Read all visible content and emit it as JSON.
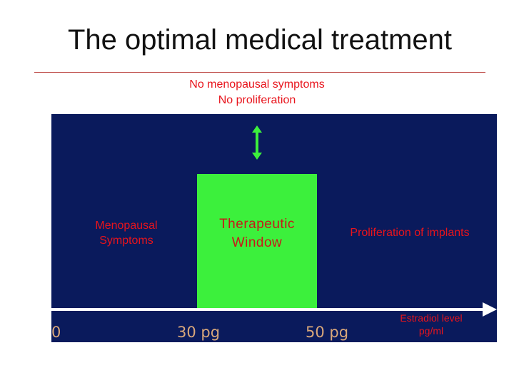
{
  "title": "The optimal medical treatment",
  "top_note": {
    "line1": "No menopausal symptoms",
    "line2": "No proliferation"
  },
  "regions": {
    "left": {
      "line1": "Menopausal",
      "line2": "Symptoms"
    },
    "window": {
      "line1": "Therapeutic",
      "line2": "Window"
    },
    "right": "Proliferation of implants"
  },
  "axis": {
    "ticks": [
      "0",
      "30 pg",
      "50 pg"
    ],
    "label_line1": "Estradiol level",
    "label_line2": "pg/ml"
  },
  "colors": {
    "panel": "#0a1a5c",
    "window": "#3cf03c",
    "label_red": "#e8141c",
    "tick_text": "#d9a77a",
    "title_rule": "#c0504d"
  }
}
